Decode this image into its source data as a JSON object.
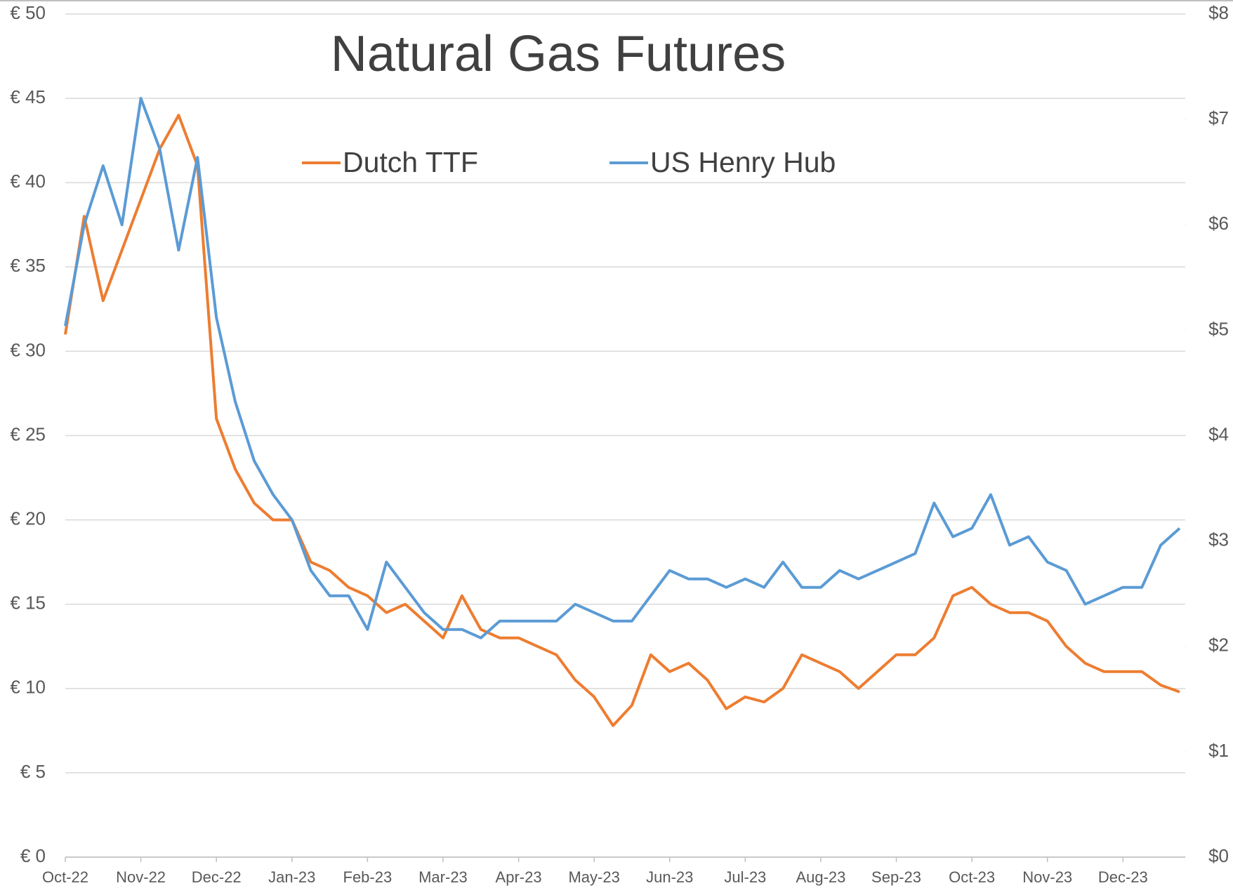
{
  "chart_data": {
    "type": "line",
    "title": "Natural Gas Futures",
    "categories": [
      "Oct-22",
      null,
      null,
      null,
      "Nov-22",
      null,
      null,
      null,
      "Dec-22",
      null,
      null,
      null,
      "Jan-23",
      null,
      null,
      null,
      "Feb-23",
      null,
      null,
      null,
      "Mar-23",
      null,
      null,
      null,
      "Apr-23",
      null,
      null,
      null,
      "May-23",
      null,
      null,
      null,
      "Jun-23",
      null,
      null,
      null,
      "Jul-23",
      null,
      null,
      null,
      "Aug-23",
      null,
      null,
      null,
      "Sep-23",
      null,
      null,
      null,
      "Oct-23",
      null,
      null,
      null,
      "Nov-23",
      null,
      null,
      null,
      "Dec-23",
      null,
      null,
      null
    ],
    "series": [
      {
        "name": "Dutch TTF",
        "color": "#ed7d31",
        "values": [
          31,
          38,
          33,
          36,
          39,
          42,
          44,
          41,
          26,
          23,
          21,
          20,
          20,
          17.5,
          17,
          16,
          15.5,
          14.5,
          15,
          14,
          13,
          15.5,
          13.5,
          13,
          13,
          12.5,
          12,
          10.5,
          9.5,
          7.8,
          9,
          12,
          11,
          11.5,
          10.5,
          8.8,
          9.5,
          9.2,
          10,
          12,
          11.5,
          11,
          10,
          11,
          12,
          12,
          13,
          15.5,
          16,
          15,
          14.5,
          14.5,
          14,
          12.5,
          11.5,
          11,
          11,
          11,
          10.2,
          9.8
        ]
      },
      {
        "name": "US Henry Hub",
        "color": "#5b9bd5",
        "axis": "y2",
        "values": [
          5.04,
          6.0,
          6.56,
          6.0,
          7.2,
          6.72,
          5.76,
          6.64,
          5.12,
          4.32,
          3.76,
          3.44,
          3.2,
          2.72,
          2.48,
          2.48,
          2.16,
          2.8,
          2.56,
          2.32,
          2.16,
          2.16,
          2.08,
          2.24,
          2.24,
          2.24,
          2.24,
          2.4,
          2.32,
          2.24,
          2.24,
          2.48,
          2.72,
          2.64,
          2.64,
          2.56,
          2.64,
          2.56,
          2.8,
          2.56,
          2.56,
          2.72,
          2.64,
          2.72,
          2.8,
          2.88,
          3.36,
          3.04,
          3.12,
          3.44,
          2.96,
          3.04,
          2.8,
          2.72,
          2.4,
          2.48,
          2.56,
          2.56,
          2.96,
          3.12
        ]
      }
    ],
    "ylim": [
      0,
      50
    ],
    "yticks": [
      {
        "value": 0,
        "label": "€ 0"
      },
      {
        "value": 5,
        "label": "€ 5"
      },
      {
        "value": 10,
        "label": "€ 10"
      },
      {
        "value": 15,
        "label": "€ 15"
      },
      {
        "value": 20,
        "label": "€ 20"
      },
      {
        "value": 25,
        "label": "€ 25"
      },
      {
        "value": 30,
        "label": "€ 30"
      },
      {
        "value": 35,
        "label": "€ 35"
      },
      {
        "value": 40,
        "label": "€ 40"
      },
      {
        "value": 45,
        "label": "€ 45"
      },
      {
        "value": 50,
        "label": "€ 50"
      }
    ],
    "y2lim": [
      0,
      8
    ],
    "y2ticks": [
      {
        "value": 0,
        "label": "$0"
      },
      {
        "value": 1,
        "label": "$1"
      },
      {
        "value": 2,
        "label": "$2"
      },
      {
        "value": 3,
        "label": "$3"
      },
      {
        "value": 4,
        "label": "$4"
      },
      {
        "value": 5,
        "label": "$5"
      },
      {
        "value": 6,
        "label": "$6"
      },
      {
        "value": 7,
        "label": "$7"
      },
      {
        "value": 8,
        "label": "$8"
      }
    ],
    "grid": true
  }
}
